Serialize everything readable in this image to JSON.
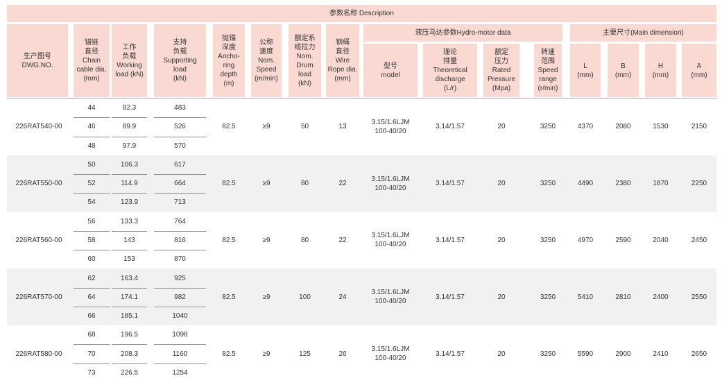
{
  "title": "参数名称  Description",
  "columns": {
    "dwg": "生产图号\nDWG.NO.",
    "chain": "锚链\n直径\nChain\ncable dia.\n(mm)",
    "working": "工作\n负载\nWorking\nload (kN)",
    "supporting": "支持\n负载\nSupporting\nload\n(kN)",
    "anchoring": "抛锚\n深度\nAncho-\nring\ndepth\n(m)",
    "speed": "公称\n速度\nNom.\nSpeed\n(m/min)",
    "drum": "额定系\n缆拉力\nNom.\nDrum\nload\n(kN)",
    "rope": "钢绳\n直径\nWire\nRope dia.\n(mm)",
    "hydro_group": "液压马达参数Hydro-motor data",
    "model": "型号\nmodel",
    "discharge": "理论\n排量\nTheoretical\ndischarge\n(L/r)",
    "pressure": "额定\n压力\nRated\nPressure\n(Mpa)",
    "speed_range": "转速\n范围\nSpeed\nrange\n(r/min)",
    "dim_group": "主要尺寸(Main dimension)",
    "L": "L\n(mm)",
    "B": "B\n(mm)",
    "H": "H\n(mm)",
    "A": "A\n(mm)"
  },
  "rows": [
    {
      "dwg": "226RAT540-00",
      "subs": [
        [
          "44",
          "82.3",
          "483"
        ],
        [
          "46",
          "89.9",
          "526"
        ],
        [
          "48",
          "97.9",
          "570"
        ]
      ],
      "depth": "82.5",
      "speed": "≥9",
      "drum": "50",
      "rope": "13",
      "model": "3.15/1.6LJM\n100-40/20",
      "discharge": "3.14/1.57",
      "pressure": "20",
      "speed_range": "3250",
      "L": "4370",
      "B": "2080",
      "H": "1530",
      "A": "2150"
    },
    {
      "dwg": "226RAT550-00",
      "subs": [
        [
          "50",
          "106.3",
          "617"
        ],
        [
          "52",
          "114.9",
          "664"
        ],
        [
          "54",
          "123.9",
          "713"
        ]
      ],
      "depth": "82.5",
      "speed": "≥9",
      "drum": "80",
      "rope": "22",
      "model": "3.15/1.6LJM\n100-40/20",
      "discharge": "3.14/1.57",
      "pressure": "20",
      "speed_range": "3250",
      "L": "4490",
      "B": "2380",
      "H": "1870",
      "A": "2250"
    },
    {
      "dwg": "226RAT560-00",
      "subs": [
        [
          "56",
          "133.3",
          "764"
        ],
        [
          "58",
          "143",
          "816"
        ],
        [
          "60",
          "153",
          "870"
        ]
      ],
      "depth": "82.5",
      "speed": "≥9",
      "drum": "80",
      "rope": "22",
      "model": "3.15/1.6LJM\n100-40/20",
      "discharge": "3.14/1.57",
      "pressure": "20",
      "speed_range": "3250",
      "L": "4970",
      "B": "2590",
      "H": "2040",
      "A": "2450"
    },
    {
      "dwg": "226RAT570-00",
      "subs": [
        [
          "62",
          "163.4",
          "925"
        ],
        [
          "64",
          "174.1",
          "982"
        ],
        [
          "66",
          "185.1",
          "1040"
        ]
      ],
      "depth": "82.5",
      "speed": "≥9",
      "drum": "100",
      "rope": "24",
      "model": "3.15/1.6LJM\n100-40/20",
      "discharge": "3.14/1.57",
      "pressure": "20",
      "speed_range": "3250",
      "L": "5410",
      "B": "2810",
      "H": "2400",
      "A": "2550"
    },
    {
      "dwg": "226RAT580-00",
      "subs": [
        [
          "68",
          "196.5",
          "1098"
        ],
        [
          "70",
          "208.3",
          "1160"
        ],
        [
          "73",
          "226.5",
          "1254"
        ]
      ],
      "depth": "82.5",
      "speed": "≥9",
      "drum": "125",
      "rope": "26",
      "model": "3.15/1.6LJM\n100-40/20",
      "discharge": "3.14/1.57",
      "pressure": "20",
      "speed_range": "3250",
      "L": "5590",
      "B": "2900",
      "H": "2410",
      "A": "2650"
    }
  ]
}
